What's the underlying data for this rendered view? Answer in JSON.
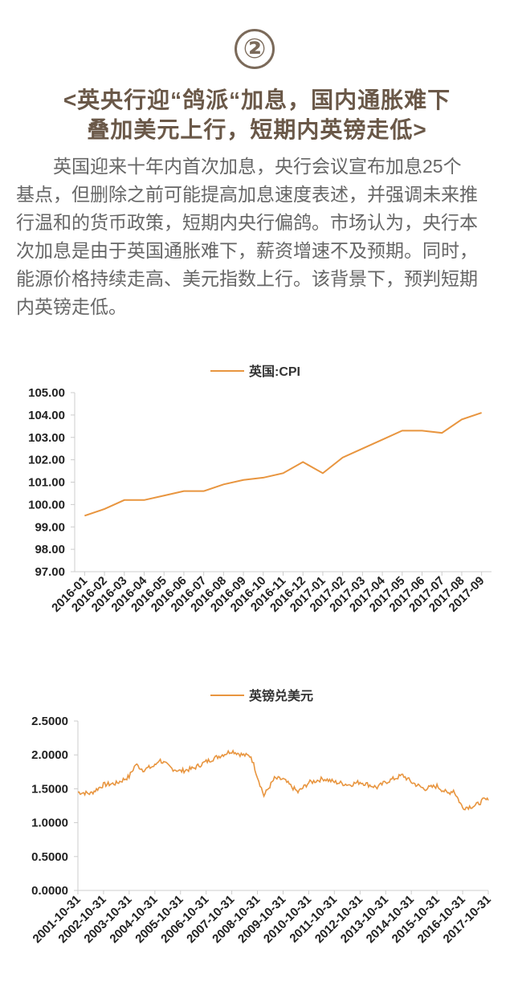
{
  "header": {
    "badge": "②",
    "title_line1": "<英央行迎“鸽派“加息，国内通胀难下",
    "title_line2": "叠加美元上行，短期内英镑走低>"
  },
  "body": {
    "lines": [
      "英国迎来十年内首次加息，央行会议宣布加息25个",
      "基点，但删除之前可能提高加息速度表述，并强调未来推",
      "行温和的货币政策，短期内央行偏鸽。市场认为，央行本",
      "次加息是由于英国通胀难下，薪资增速不及预期。同时，",
      "能源价格持续走高、美元指数上行。该背景下，预判短期",
      "内英镑走低。"
    ]
  },
  "colors": {
    "line": "#e8953f",
    "axis": "#cccccc"
  },
  "chart_data": [
    {
      "type": "line",
      "legend_position": "top-center",
      "grid": false,
      "x": [
        "2016-01",
        "2016-02",
        "2016-03",
        "2016-04",
        "2016-05",
        "2016-06",
        "2016-07",
        "2016-08",
        "2016-09",
        "2016-10",
        "2016-11",
        "2016-12",
        "2017-01",
        "2017-02",
        "2017-03",
        "2017-04",
        "2017-05",
        "2017-06",
        "2017-07",
        "2017-08",
        "2017-09"
      ],
      "series": [
        {
          "name": "英国:CPI",
          "values": [
            99.5,
            99.8,
            100.2,
            100.2,
            100.4,
            100.6,
            100.6,
            100.9,
            101.1,
            101.2,
            101.4,
            101.9,
            101.4,
            102.1,
            102.5,
            102.9,
            103.3,
            103.3,
            103.2,
            103.8,
            104.1
          ]
        }
      ],
      "ylim": [
        97.0,
        105.0
      ],
      "yticks": [
        "97.00",
        "98.00",
        "99.00",
        "100.00",
        "101.00",
        "102.00",
        "103.00",
        "104.00",
        "105.00"
      ]
    },
    {
      "type": "line",
      "legend_position": "top-center",
      "grid": false,
      "x": [
        "2001-10-31",
        "2002-10-31",
        "2003-10-31",
        "2004-10-31",
        "2005-10-31",
        "2006-10-31",
        "2007-10-31",
        "2008-10-31",
        "2009-10-31",
        "2010-10-31",
        "2011-10-31",
        "2012-10-31",
        "2013-10-31",
        "2014-10-31",
        "2015-10-31",
        "2016-10-31",
        "2017-10-31"
      ],
      "series": [
        {
          "name": "英镑兑美元",
          "points": [
            [
              "2001-10-31",
              1.45
            ],
            [
              "2002-04-30",
              1.43
            ],
            [
              "2002-10-31",
              1.56
            ],
            [
              "2003-04-30",
              1.58
            ],
            [
              "2003-10-31",
              1.68
            ],
            [
              "2004-01-31",
              1.86
            ],
            [
              "2004-05-15",
              1.78
            ],
            [
              "2004-10-31",
              1.84
            ],
            [
              "2004-12-31",
              1.93
            ],
            [
              "2005-06-30",
              1.8
            ],
            [
              "2005-10-31",
              1.76
            ],
            [
              "2006-04-30",
              1.8
            ],
            [
              "2006-10-31",
              1.9
            ],
            [
              "2007-04-30",
              1.98
            ],
            [
              "2007-10-31",
              2.06
            ],
            [
              "2008-03-31",
              2.0
            ],
            [
              "2008-07-31",
              1.98
            ],
            [
              "2008-10-31",
              1.68
            ],
            [
              "2009-01-31",
              1.4
            ],
            [
              "2009-06-30",
              1.65
            ],
            [
              "2009-10-31",
              1.64
            ],
            [
              "2010-05-31",
              1.45
            ],
            [
              "2010-10-31",
              1.59
            ],
            [
              "2011-05-31",
              1.65
            ],
            [
              "2011-10-31",
              1.6
            ],
            [
              "2012-05-31",
              1.56
            ],
            [
              "2012-10-31",
              1.6
            ],
            [
              "2013-06-30",
              1.52
            ],
            [
              "2013-10-31",
              1.6
            ],
            [
              "2014-06-30",
              1.7
            ],
            [
              "2014-10-31",
              1.6
            ],
            [
              "2015-04-30",
              1.5
            ],
            [
              "2015-10-31",
              1.54
            ],
            [
              "2016-03-31",
              1.43
            ],
            [
              "2016-06-23",
              1.48
            ],
            [
              "2016-10-31",
              1.22
            ],
            [
              "2017-04-30",
              1.25
            ],
            [
              "2017-08-31",
              1.34
            ],
            [
              "2017-10-31",
              1.33
            ]
          ]
        }
      ],
      "ylim": [
        0,
        2.5
      ],
      "yticks": [
        "0.0000",
        "0.5000",
        "1.0000",
        "1.5000",
        "2.0000",
        "2.5000"
      ]
    }
  ]
}
